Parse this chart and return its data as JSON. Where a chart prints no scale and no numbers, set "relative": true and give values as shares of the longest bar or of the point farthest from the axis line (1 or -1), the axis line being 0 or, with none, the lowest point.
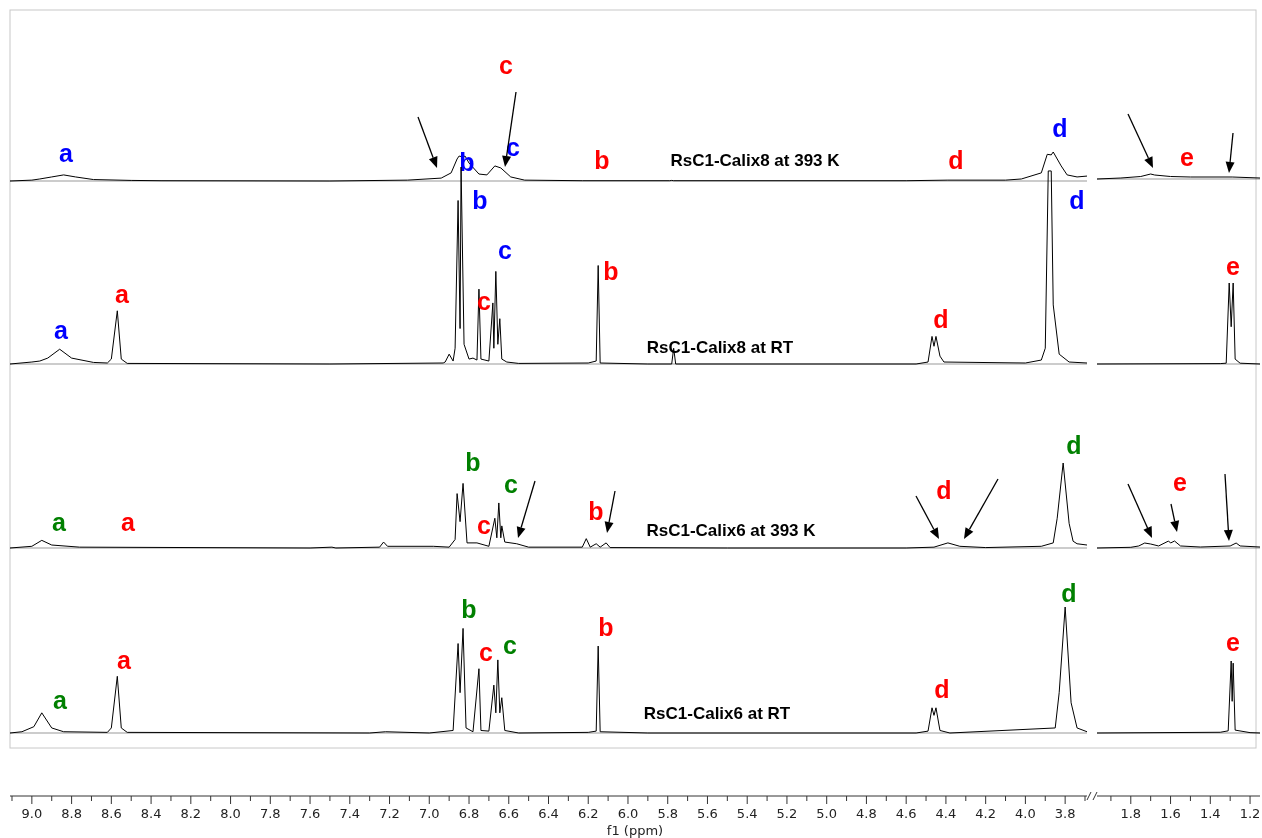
{
  "chart_data": [
    {
      "type": "line",
      "relative": true,
      "xlim": [
        9.11,
        3.69
      ],
      "tick_labels": false,
      "x": [
        9.11,
        9.0,
        8.96,
        8.9,
        8.84,
        8.78,
        8.69,
        8.5,
        8.35,
        7.5,
        7.11,
        6.94,
        6.89,
        6.86,
        6.85,
        6.83,
        6.82,
        6.8,
        6.75,
        6.71,
        6.67,
        6.64,
        6.59,
        6.52,
        6.23,
        5.79,
        5.78,
        5.77,
        4.6,
        4.39,
        4.1,
        4.02,
        3.92,
        3.89,
        3.87,
        3.86,
        3.82,
        3.79,
        3.74,
        3.69
      ],
      "series": [
        {
          "name": "RsC1-Calix8 at 393 K",
          "color": "#000000",
          "values": [
            0,
            0.03,
            0.07,
            0.14,
            0.21,
            0.14,
            0.05,
            0.02,
            0.01,
            0,
            0.03,
            0.1,
            0.28,
            0.76,
            0.86,
            0.83,
            0.86,
            0.62,
            0.24,
            0.21,
            0.52,
            0.45,
            0.14,
            0.03,
            0.01,
            0.01,
            0.02,
            0.01,
            0.01,
            0.03,
            0.03,
            0.07,
            0.28,
            0.92,
            0.9,
            1,
            0.52,
            0.21,
            0.14,
            0.17
          ]
        }
      ],
      "annotations": [
        "a",
        "b",
        "c",
        "c",
        "b",
        "d",
        "d"
      ]
    },
    {
      "type": "line",
      "relative": true,
      "xlim": [
        1.97,
        1.15
      ],
      "tick_labels": false,
      "x": [
        1.97,
        1.85,
        1.75,
        1.7,
        1.68,
        1.6,
        1.5,
        1.29,
        1.15
      ],
      "series": [
        {
          "color": "#000000",
          "values": [
            0,
            0.2,
            0.5,
            1,
            0.8,
            0.5,
            0.4,
            0.4,
            0.2
          ]
        }
      ],
      "annotations": [
        "e"
      ]
    },
    {
      "type": "line",
      "relative": true,
      "xlim": [
        9.11,
        3.69
      ],
      "tick_labels": false,
      "x": [
        9.11,
        9.0,
        8.96,
        8.92,
        8.86,
        8.8,
        8.69,
        8.62,
        8.6,
        8.57,
        8.55,
        8.52,
        7.5,
        6.93,
        6.92,
        6.9,
        6.88,
        6.87,
        6.855,
        6.845,
        6.84,
        6.825,
        6.8,
        6.78,
        6.76,
        6.75,
        6.74,
        6.7,
        6.68,
        6.675,
        6.665,
        6.655,
        6.645,
        6.635,
        6.61,
        6.55,
        6.2,
        6.16,
        6.15,
        6.14,
        5.9,
        5.78,
        5.77,
        5.76,
        4.55,
        4.49,
        4.47,
        4.46,
        4.45,
        4.43,
        4.41,
        4.0,
        3.92,
        3.9,
        3.885,
        3.87,
        3.86,
        3.83,
        3.78,
        3.69
      ],
      "series": [
        {
          "name": "RsC1-Calix8 at RT",
          "color": "#000000",
          "values": [
            0,
            0.01,
            0.015,
            0.03,
            0.075,
            0.03,
            0.008,
            0.005,
            0.025,
            0.27,
            0.025,
            0.003,
            0,
            0.005,
            0.01,
            0.05,
            0.015,
            0.08,
            0.83,
            0.18,
            1,
            0.1,
            0.025,
            0.03,
            0.02,
            0.38,
            0.025,
            0.015,
            0.31,
            0.08,
            0.47,
            0.1,
            0.23,
            0.025,
            0.01,
            0.003,
            0.005,
            0.015,
            0.5,
            0.005,
            0,
            0,
            0.08,
            0,
            0,
            0.01,
            0.14,
            0.09,
            0.14,
            0.04,
            0.01,
            0.005,
            0.02,
            0.08,
            0.98,
            0.98,
            0.3,
            0.05,
            0.01,
            0.005
          ]
        }
      ],
      "annotations": [
        "a",
        "a",
        "b",
        "c",
        "c",
        "b",
        "d",
        "d"
      ]
    },
    {
      "type": "line",
      "relative": true,
      "xlim": [
        1.97,
        1.15
      ],
      "tick_labels": false,
      "x": [
        1.97,
        1.35,
        1.32,
        1.305,
        1.295,
        1.285,
        1.275,
        1.25,
        1.15
      ],
      "series": [
        {
          "color": "#000000",
          "values": [
            0,
            0.005,
            0.01,
            1,
            0.46,
            1,
            0.06,
            0.01,
            0
          ]
        }
      ],
      "annotations": [
        "e"
      ]
    },
    {
      "type": "line",
      "relative": true,
      "xlim": [
        9.11,
        3.69
      ],
      "tick_labels": false,
      "x": [
        9.11,
        9.0,
        8.95,
        8.9,
        8.76,
        7.6,
        7.49,
        7.47,
        7.25,
        7.23,
        7.21,
        6.98,
        6.9,
        6.87,
        6.86,
        6.845,
        6.83,
        6.81,
        6.76,
        6.7,
        6.67,
        6.66,
        6.65,
        6.64,
        6.635,
        6.62,
        6.56,
        6.5,
        6.23,
        6.21,
        6.19,
        6.16,
        6.14,
        6.11,
        6.09,
        5.5,
        4.6,
        4.46,
        4.39,
        4.33,
        4.2,
        3.92,
        3.86,
        3.84,
        3.81,
        3.78,
        3.76,
        3.74,
        3.69
      ],
      "series": [
        {
          "name": "RsC1-Calix6 at 393 K",
          "color": "#000000",
          "values": [
            0,
            0.02,
            0.09,
            0.035,
            0.01,
            0,
            0.01,
            0,
            0.01,
            0.07,
            0.02,
            0.02,
            0.01,
            0.1,
            0.64,
            0.31,
            0.76,
            0.06,
            0.06,
            0.02,
            0.35,
            0.12,
            0.53,
            0.12,
            0.26,
            0.07,
            0.05,
            0.01,
            0.01,
            0.11,
            0.01,
            0.05,
            0.01,
            0.06,
            0.005,
            0,
            0,
            0.01,
            0.06,
            0.02,
            0.005,
            0.02,
            0.06,
            0.35,
            1,
            0.29,
            0.08,
            0.05,
            0.035
          ]
        }
      ],
      "annotations": [
        "a",
        "a",
        "b",
        "c",
        "c",
        "b",
        "d",
        "d"
      ]
    },
    {
      "type": "line",
      "relative": true,
      "xlim": [
        1.97,
        1.15
      ],
      "tick_labels": false,
      "x": [
        1.97,
        1.8,
        1.76,
        1.73,
        1.7,
        1.66,
        1.61,
        1.6,
        1.58,
        1.55,
        1.45,
        1.3,
        1.27,
        1.25,
        1.15
      ],
      "series": [
        {
          "color": "#000000",
          "values": [
            0,
            0.1,
            0.29,
            0.71,
            0.57,
            0.29,
            1,
            0.71,
            1,
            0.29,
            0.14,
            0.29,
            0.71,
            0.29,
            0.14
          ]
        }
      ],
      "annotations": [
        "e"
      ]
    },
    {
      "type": "line",
      "relative": true,
      "xlim": [
        9.11,
        3.69
      ],
      "tick_labels": "x",
      "xlabel": "f1 (ppm)",
      "xticks": [
        {
          "value": 9,
          "label": "9.0"
        },
        8.8,
        8.6,
        8.4,
        8.2,
        {
          "value": 8,
          "label": "8.0"
        },
        7.8,
        7.6,
        7.4,
        7.2,
        {
          "value": 7,
          "label": "7.0"
        },
        6.8,
        6.6,
        6.4,
        6.2,
        {
          "value": 6,
          "label": "6.0"
        },
        5.8,
        5.6,
        5.4,
        5.2,
        {
          "value": 5,
          "label": "5.0"
        },
        4.8,
        4.6,
        4.4,
        4.2,
        {
          "value": 4,
          "label": "4.0"
        },
        3.8
      ],
      "x": [
        9.11,
        9.05,
        8.99,
        8.95,
        8.9,
        8.84,
        8.62,
        8.6,
        8.57,
        8.55,
        8.52,
        7.3,
        7.22,
        7.0,
        6.88,
        6.855,
        6.845,
        6.83,
        6.815,
        6.78,
        6.75,
        6.74,
        6.7,
        6.675,
        6.665,
        6.655,
        6.645,
        6.635,
        6.62,
        6.55,
        6.2,
        6.16,
        6.15,
        6.14,
        5.9,
        4.55,
        4.49,
        4.47,
        4.46,
        4.45,
        4.43,
        4.38,
        3.85,
        3.83,
        3.8,
        3.77,
        3.74,
        3.69
      ],
      "series": [
        {
          "name": "RsC1-Calix6 at RT",
          "color": "#000000",
          "values": [
            0,
            0.01,
            0.05,
            0.16,
            0.04,
            0.01,
            0.005,
            0.04,
            0.45,
            0.04,
            0.005,
            0,
            0.01,
            0,
            0.02,
            0.71,
            0.32,
            0.83,
            0.04,
            0.01,
            0.51,
            0.02,
            0.015,
            0.38,
            0.16,
            0.58,
            0.16,
            0.28,
            0.02,
            0,
            0.005,
            0.015,
            0.69,
            0.01,
            0,
            0,
            0.015,
            0.2,
            0.14,
            0.2,
            0.02,
            0,
            0.04,
            0.32,
            1,
            0.24,
            0.04,
            0.01
          ]
        }
      ],
      "annotations": [
        "a",
        "a",
        "b",
        "c",
        "c",
        "b",
        "d",
        "d"
      ]
    },
    {
      "type": "line",
      "relative": true,
      "xlim": [
        1.97,
        1.15
      ],
      "tick_labels": "x",
      "xticks": [
        1.8,
        1.6,
        1.4,
        1.2
      ],
      "x": [
        1.97,
        1.35,
        1.31,
        1.295,
        1.29,
        1.285,
        1.275,
        1.2,
        1.15
      ],
      "series": [
        {
          "color": "#000000",
          "values": [
            0,
            0.01,
            0.03,
            1,
            0.44,
            0.97,
            0.04,
            0.005,
            0
          ]
        }
      ],
      "annotations": [
        "e"
      ]
    }
  ]
}
